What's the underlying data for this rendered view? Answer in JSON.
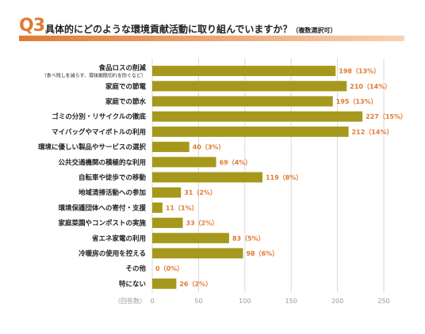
{
  "header": {
    "q_number": "Q3",
    "title": "具体的にどのような環境貢献活動に取り組んでいますか？",
    "title_note": "（複数選択可）"
  },
  "colors": {
    "bar": "#a6981c",
    "value_text": "#e07a32",
    "accent": "#e07a32",
    "grid": "#d8d8d8"
  },
  "chart_data": {
    "type": "bar",
    "orientation": "horizontal",
    "categories": [
      "食品ロスの削減",
      "家庭での節電",
      "家庭での節水",
      "ゴミの分別・リサイクルの徹底",
      "マイバッグやマイボトルの利用",
      "環境に優しい製品やサービスの選択",
      "公共交通機関の積極的な利用",
      "自転車や徒歩での移動",
      "地域清掃活動への参加",
      "環境保護団体への寄付・支援",
      "家庭菜園やコンポストの実施",
      "省エネ家電の利用",
      "冷暖房の使用を控える",
      "その他",
      "特にない"
    ],
    "category_notes": [
      "（食べ残しを減らす、賞味期限切れを防ぐなど）"
    ],
    "values": [
      198,
      210,
      195,
      227,
      212,
      40,
      69,
      119,
      31,
      11,
      33,
      83,
      98,
      0,
      26
    ],
    "value_labels": [
      "198（13%）",
      "210（14%）",
      "195（13%）",
      "227（15%）",
      "212（14%）",
      "40（3%）",
      "69（4%）",
      "119（8%）",
      "31（2%）",
      "11（1%）",
      "33（2%）",
      "83（5%）",
      "98（6%）",
      "0（0%）",
      "26（2%）"
    ],
    "x_ticks": [
      0,
      50,
      100,
      150,
      200,
      250
    ],
    "xlim": [
      0,
      250
    ],
    "unit_label": "（回答数）",
    "grid": true
  }
}
